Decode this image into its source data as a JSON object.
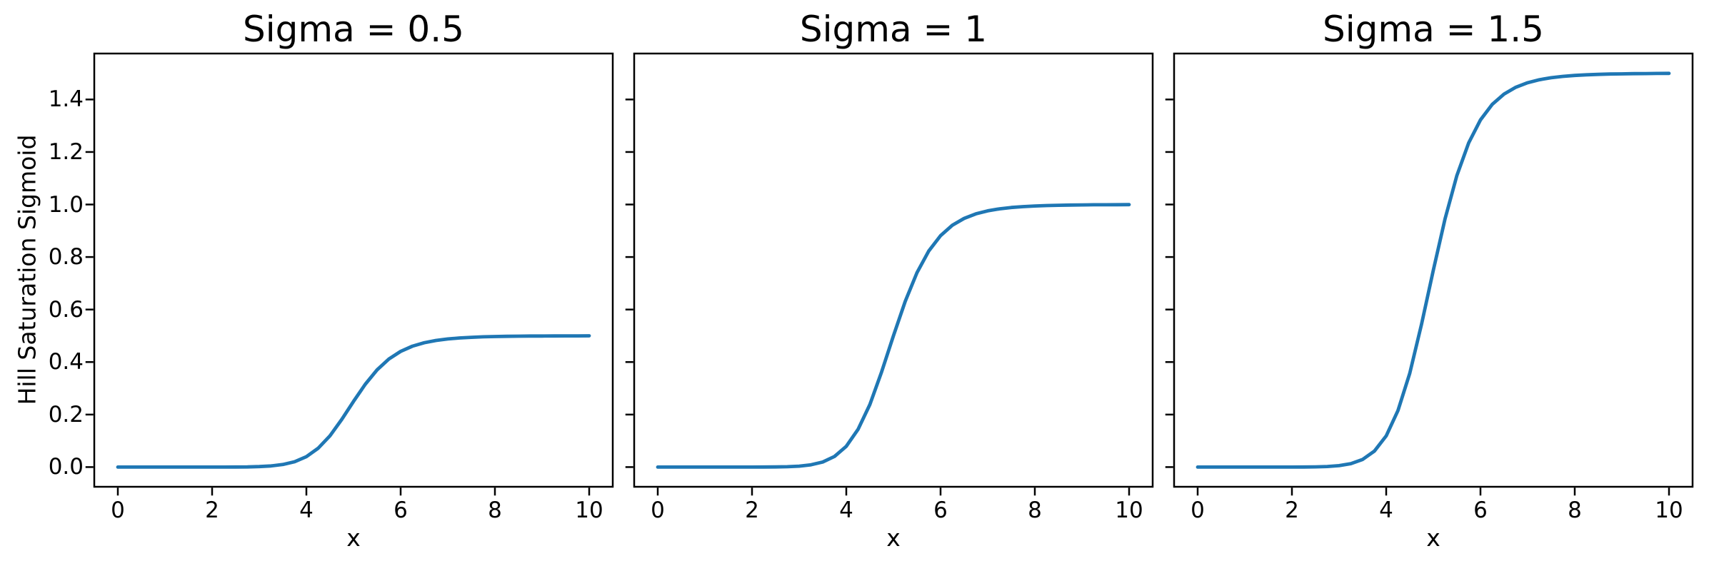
{
  "figure": {
    "background": "#ffffff",
    "text_color": "#000000"
  },
  "chart_data": {
    "type": "line",
    "xlabel": "x",
    "ylabel": "Hill Saturation Sigmoid",
    "x_tick_labels": [
      "0",
      "2",
      "4",
      "6",
      "8",
      "10"
    ],
    "x_tick_values": [
      0,
      2,
      4,
      6,
      8,
      10
    ],
    "y_tick_labels": [
      "0.0",
      "0.2",
      "0.4",
      "0.6",
      "0.8",
      "1.0",
      "1.2",
      "1.4"
    ],
    "y_tick_values": [
      0,
      0.2,
      0.4,
      0.6,
      0.8,
      1.0,
      1.2,
      1.4
    ],
    "xlim": [
      -0.5,
      10.5
    ],
    "ylim": [
      -0.075,
      1.575
    ],
    "grid": false,
    "legend_position": "none",
    "line_color": "#1f77b4",
    "x": [
      0,
      0.25,
      0.5,
      0.75,
      1,
      1.25,
      1.5,
      1.75,
      2,
      2.25,
      2.5,
      2.75,
      3,
      3.25,
      3.5,
      3.75,
      4,
      4.25,
      4.5,
      4.75,
      5,
      5.25,
      5.5,
      5.75,
      6,
      6.25,
      6.5,
      6.75,
      7,
      7.25,
      7.5,
      7.75,
      8,
      8.25,
      8.5,
      8.75,
      9,
      9.25,
      9.5,
      9.75,
      10
    ],
    "subplots": [
      {
        "title": "Sigma = 0.5",
        "sigma": 0.5,
        "saturation_value": 0.5,
        "midpoint_x": 5,
        "y": [
          0,
          0,
          0,
          0,
          0,
          0,
          0,
          0,
          0,
          0.0001,
          0.0003,
          0.0007,
          0.0018,
          0.0044,
          0.0097,
          0.0203,
          0.0396,
          0.0719,
          0.1191,
          0.1814,
          0.25,
          0.3155,
          0.3702,
          0.4116,
          0.4407,
          0.4605,
          0.4736,
          0.4823,
          0.488,
          0.4918,
          0.4943,
          0.496,
          0.4972,
          0.498,
          0.4986,
          0.499,
          0.4992,
          0.4995,
          0.4996,
          0.4997,
          0.4998
        ]
      },
      {
        "title": "Sigma = 1",
        "sigma": 1,
        "saturation_value": 1.0,
        "midpoint_x": 5,
        "y": [
          0,
          0,
          0,
          0,
          0,
          0,
          0,
          0,
          0,
          0.0002,
          0.0005,
          0.0014,
          0.0036,
          0.0087,
          0.0194,
          0.0405,
          0.0791,
          0.1438,
          0.2382,
          0.3628,
          0.5,
          0.631,
          0.7404,
          0.8231,
          0.8814,
          0.9209,
          0.9471,
          0.9645,
          0.9759,
          0.9835,
          0.9886,
          0.992,
          0.9944,
          0.996,
          0.9971,
          0.9979,
          0.9984,
          0.9989,
          0.9991,
          0.9994,
          0.9995
        ]
      },
      {
        "title": "Sigma = 1.5",
        "sigma": 1.5,
        "saturation_value": 1.5,
        "midpoint_x": 5,
        "y": [
          0,
          0,
          0,
          0,
          0,
          0,
          0,
          0,
          0,
          0.0003,
          0.0008,
          0.0021,
          0.0054,
          0.0131,
          0.0291,
          0.0608,
          0.1187,
          0.2157,
          0.3573,
          0.5442,
          0.75,
          0.9465,
          1.1106,
          1.2347,
          1.3221,
          1.3814,
          1.4207,
          1.4468,
          1.4639,
          1.4753,
          1.4829,
          1.488,
          1.4916,
          1.494,
          1.4957,
          1.4969,
          1.4976,
          1.4984,
          1.4987,
          1.4991,
          1.4993
        ]
      }
    ]
  }
}
